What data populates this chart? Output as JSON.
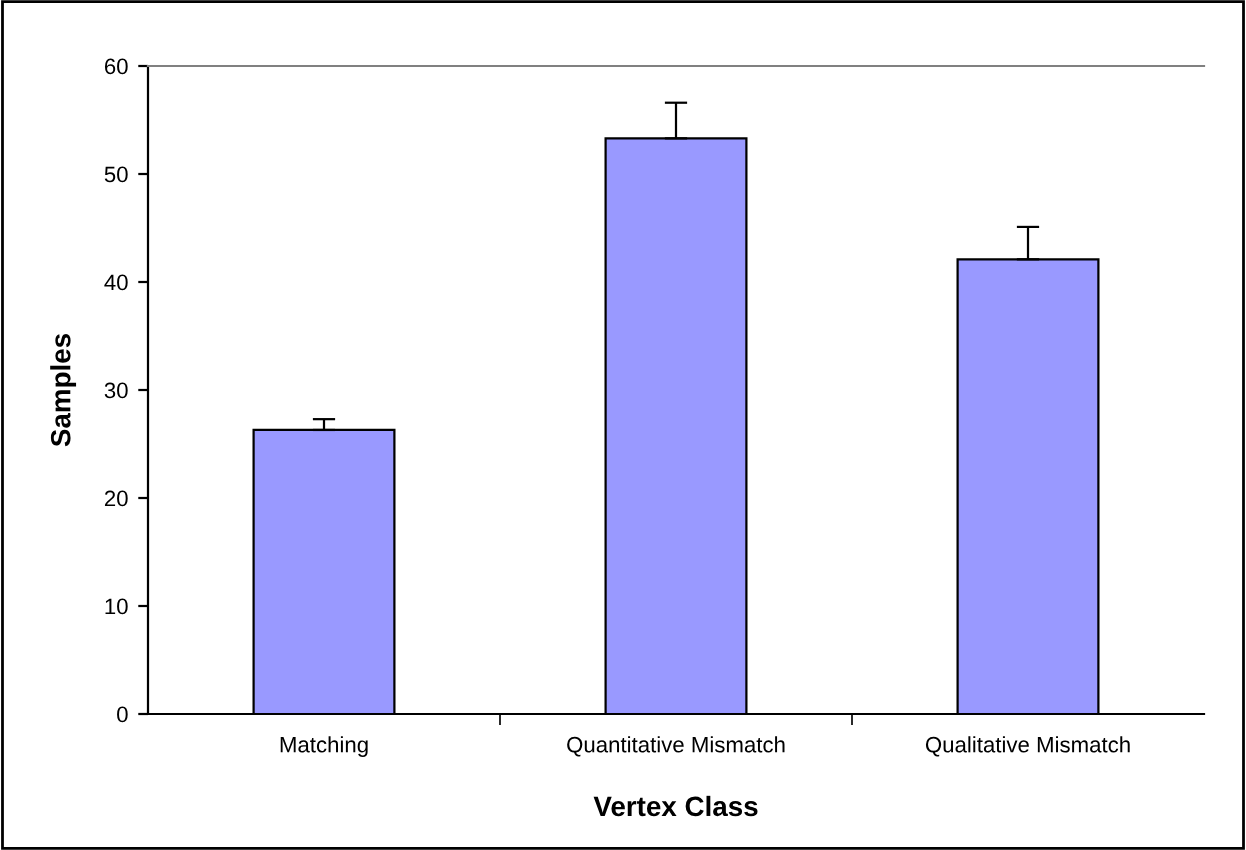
{
  "chart_data": {
    "type": "bar",
    "xlabel": "Vertex Class",
    "ylabel": "Samples",
    "categories": [
      "Matching",
      "Quantitative Mismatch",
      "Qualitative Mismatch"
    ],
    "values": [
      26.3,
      53.3,
      42.1
    ],
    "errors": [
      [
        26.3,
        27.3
      ],
      [
        53.3,
        56.6
      ],
      [
        42.1,
        45.1
      ]
    ],
    "color": "#9999ff",
    "ylim": [
      0,
      60
    ],
    "yticks": [
      0,
      10,
      20,
      30,
      40,
      50,
      60
    ],
    "grid": false,
    "legend": false
  }
}
